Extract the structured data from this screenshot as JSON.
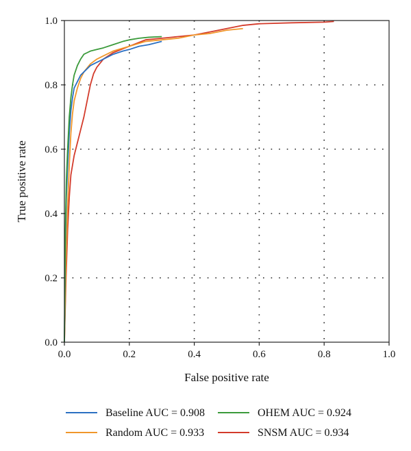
{
  "chart_data": {
    "type": "line",
    "title": "",
    "xlabel": "False positive rate",
    "ylabel": "True positive rate",
    "xlim": [
      0,
      1
    ],
    "ylim": [
      0,
      1
    ],
    "xticks": [
      "0.0",
      "0.2",
      "0.4",
      "0.6",
      "0.8",
      "1.0"
    ],
    "yticks": [
      "0.0",
      "0.2",
      "0.4",
      "0.6",
      "0.8",
      "1.0"
    ],
    "grid": true,
    "legend_position": "bottom",
    "series": [
      {
        "name": "Baseline AUC = 0.908",
        "color": "#2a6fc2",
        "x": [
          0,
          0.003,
          0.006,
          0.01,
          0.015,
          0.02,
          0.025,
          0.03,
          0.04,
          0.05,
          0.06,
          0.07,
          0.08,
          0.1,
          0.12,
          0.15,
          0.18,
          0.2,
          0.23,
          0.26,
          0.3
        ],
        "y": [
          0,
          0.3,
          0.45,
          0.55,
          0.65,
          0.72,
          0.76,
          0.79,
          0.81,
          0.83,
          0.84,
          0.85,
          0.86,
          0.87,
          0.88,
          0.895,
          0.905,
          0.91,
          0.92,
          0.925,
          0.935
        ]
      },
      {
        "name": "OHEM AUC = 0.924",
        "color": "#3a9a3a",
        "x": [
          0,
          0.003,
          0.006,
          0.01,
          0.015,
          0.02,
          0.025,
          0.03,
          0.04,
          0.05,
          0.06,
          0.07,
          0.08,
          0.1,
          0.12,
          0.15,
          0.18,
          0.2,
          0.23,
          0.26,
          0.3
        ],
        "y": [
          0,
          0.35,
          0.5,
          0.6,
          0.7,
          0.76,
          0.8,
          0.83,
          0.86,
          0.88,
          0.895,
          0.9,
          0.905,
          0.91,
          0.915,
          0.925,
          0.935,
          0.94,
          0.945,
          0.948,
          0.95
        ]
      },
      {
        "name": "Random AUC = 0.933",
        "color": "#f0962a",
        "x": [
          0,
          0.005,
          0.01,
          0.015,
          0.02,
          0.025,
          0.03,
          0.04,
          0.05,
          0.06,
          0.08,
          0.1,
          0.12,
          0.15,
          0.2,
          0.25,
          0.3,
          0.35,
          0.4,
          0.45,
          0.5,
          0.55
        ],
        "y": [
          0,
          0.25,
          0.42,
          0.55,
          0.65,
          0.71,
          0.75,
          0.79,
          0.82,
          0.84,
          0.865,
          0.88,
          0.89,
          0.905,
          0.92,
          0.935,
          0.94,
          0.945,
          0.955,
          0.96,
          0.97,
          0.975
        ]
      },
      {
        "name": "SNSM AUC = 0.934",
        "color": "#d33a2a",
        "x": [
          0,
          0.005,
          0.01,
          0.015,
          0.02,
          0.03,
          0.04,
          0.05,
          0.06,
          0.07,
          0.08,
          0.09,
          0.1,
          0.12,
          0.15,
          0.2,
          0.25,
          0.3,
          0.35,
          0.4,
          0.45,
          0.5,
          0.55,
          0.6,
          0.7,
          0.8,
          0.83
        ],
        "y": [
          0,
          0.2,
          0.35,
          0.45,
          0.52,
          0.58,
          0.62,
          0.66,
          0.7,
          0.75,
          0.8,
          0.835,
          0.855,
          0.88,
          0.9,
          0.92,
          0.94,
          0.945,
          0.95,
          0.955,
          0.965,
          0.975,
          0.985,
          0.99,
          0.993,
          0.995,
          0.997
        ]
      }
    ]
  }
}
